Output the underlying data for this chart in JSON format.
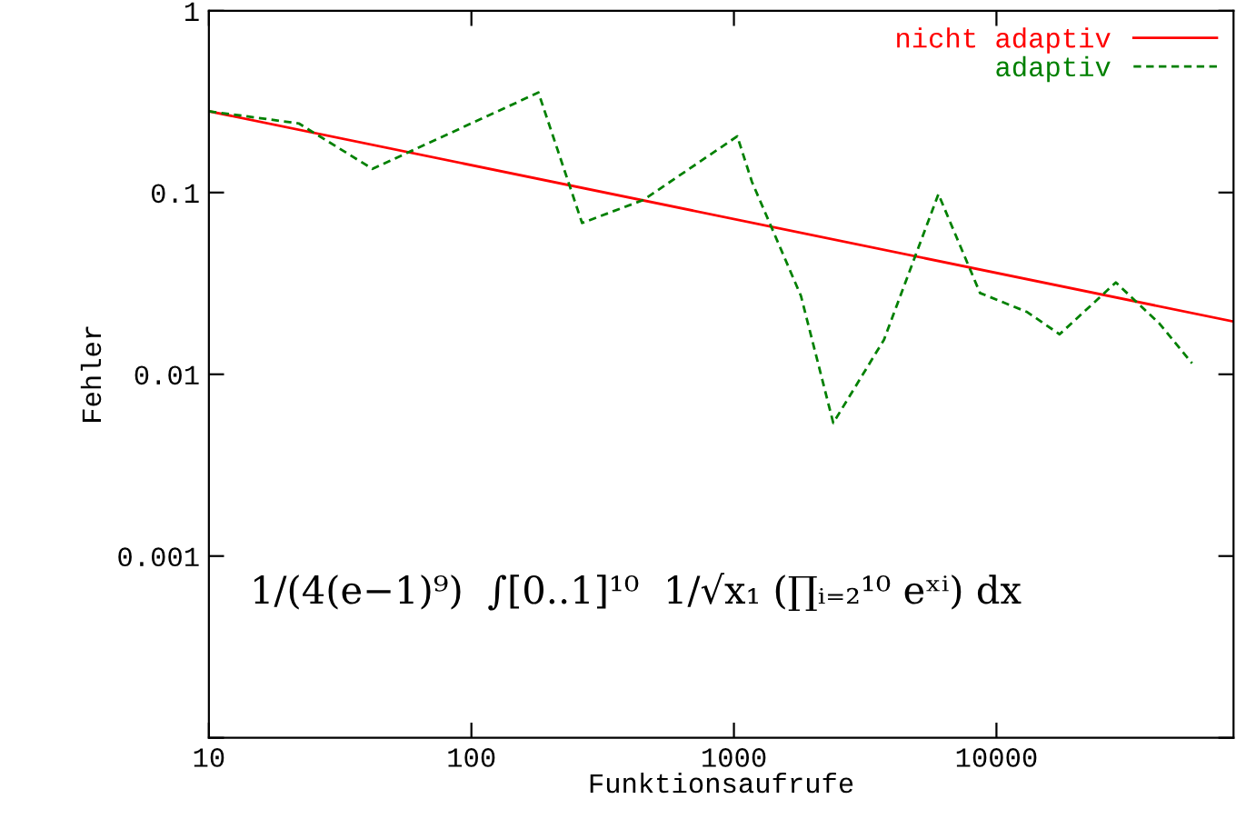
{
  "chart_data": {
    "type": "line",
    "xlabel": "Funktionsaufrufe",
    "ylabel": "Fehler",
    "log": "xy",
    "xlim": [
      10,
      80000
    ],
    "xticks": [
      10,
      100,
      1000,
      10000
    ],
    "ylim": [
      0.0001,
      1
    ],
    "yticks": [
      {
        "value": 0.0001,
        "label": null
      },
      0.001,
      0.01,
      0.1,
      1
    ],
    "grid": false,
    "legend": "top right",
    "marker": "none",
    "series": [
      {
        "name": "nicht adaptiv",
        "color": "#ff0000",
        "line_style": "solid",
        "x": [
          10,
          80000
        ],
        "values": [
          0.28,
          0.0195
        ]
      },
      {
        "name": "adaptiv",
        "color": "#008000",
        "line_style": "dashed",
        "x": [
          10,
          22,
          42,
          180,
          264,
          452,
          1030,
          1170,
          1800,
          2390,
          3730,
          6010,
          8660,
          13100,
          17400,
          28500,
          41800,
          55600
        ],
        "values": [
          0.28,
          0.24,
          0.135,
          0.355,
          0.068,
          0.091,
          0.204,
          0.115,
          0.027,
          0.0054,
          0.0155,
          0.098,
          0.028,
          0.022,
          0.0166,
          0.032,
          0.019,
          0.0115
        ]
      }
    ],
    "annotations": [
      {
        "text": "1/(4(e−1)⁹)  ∫[0..1]¹⁰  1/√x₁ (∏ᵢ₌₂¹⁰ eˣⁱ) dx"
      }
    ]
  }
}
